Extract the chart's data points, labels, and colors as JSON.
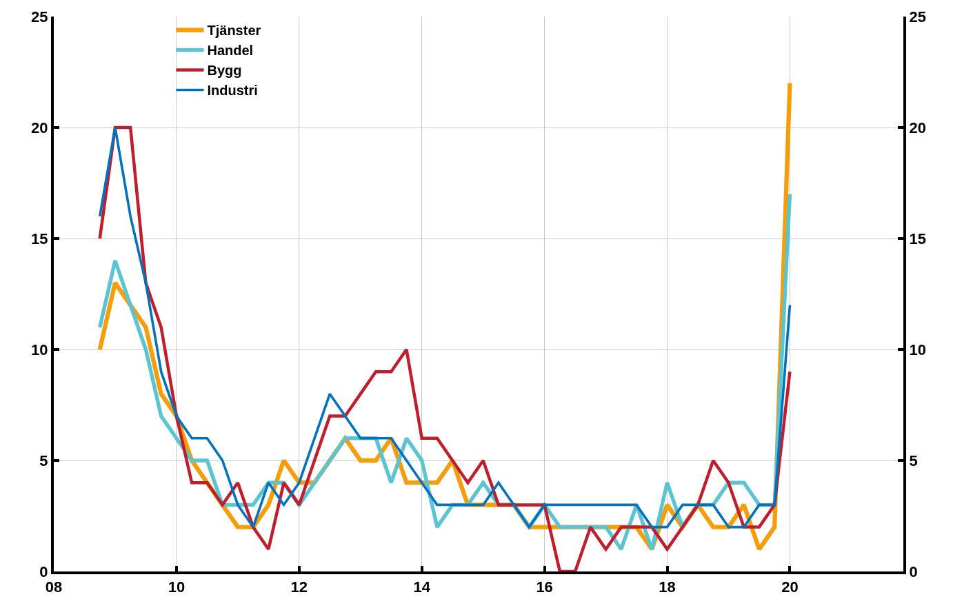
{
  "chart_data": {
    "type": "line",
    "x": [
      2008.75,
      2009.0,
      2009.25,
      2009.5,
      2009.75,
      2010.0,
      2010.25,
      2010.5,
      2010.75,
      2011.0,
      2011.25,
      2011.5,
      2011.75,
      2012.0,
      2012.25,
      2012.5,
      2012.75,
      2013.0,
      2013.25,
      2013.5,
      2013.75,
      2014.0,
      2014.25,
      2014.5,
      2014.75,
      2015.0,
      2015.25,
      2015.5,
      2015.75,
      2016.0,
      2016.25,
      2016.5,
      2016.75,
      2017.0,
      2017.25,
      2017.5,
      2017.75,
      2018.0,
      2018.25,
      2018.5,
      2018.75,
      2019.0,
      2019.25,
      2019.5,
      2019.75,
      2020.0
    ],
    "series": [
      {
        "name": "Tjänster",
        "color": "#f59e0b",
        "values": [
          10,
          13,
          12,
          11,
          8,
          7,
          5,
          4,
          3,
          2,
          2,
          3,
          5,
          4,
          4,
          5,
          6,
          5,
          5,
          6,
          4,
          4,
          4,
          5,
          3,
          3,
          3,
          3,
          2,
          2,
          2,
          2,
          2,
          2,
          2,
          2,
          1,
          3,
          2,
          3,
          2,
          2,
          3,
          1,
          2,
          22
        ]
      },
      {
        "name": "Handel",
        "color": "#5bc4d2",
        "values": [
          11,
          14,
          12,
          10,
          7,
          6,
          5,
          5,
          3,
          3,
          3,
          4,
          4,
          3,
          4,
          5,
          6,
          6,
          6,
          4,
          6,
          5,
          2,
          3,
          3,
          4,
          3,
          3,
          2,
          3,
          2,
          2,
          2,
          2,
          1,
          3,
          1,
          4,
          2,
          3,
          3,
          4,
          4,
          3,
          3,
          17
        ]
      },
      {
        "name": "Bygg",
        "color": "#be1e2d",
        "values": [
          15,
          20,
          20,
          13,
          11,
          7,
          4,
          4,
          3,
          4,
          2,
          1,
          4,
          3,
          5,
          7,
          7,
          8,
          9,
          9,
          10,
          6,
          6,
          5,
          4,
          5,
          3,
          3,
          3,
          3,
          0,
          0,
          2,
          1,
          2,
          2,
          2,
          1,
          2,
          3,
          5,
          4,
          2,
          2,
          3,
          9
        ]
      },
      {
        "name": "Industri",
        "color": "#0071bb",
        "values": [
          16,
          20,
          16,
          13,
          9,
          7,
          6,
          6,
          5,
          3,
          2,
          4,
          3,
          4,
          6,
          8,
          7,
          6,
          6,
          6,
          5,
          4,
          3,
          3,
          3,
          3,
          4,
          3,
          2,
          3,
          3,
          3,
          3,
          3,
          3,
          3,
          2,
          2,
          3,
          3,
          3,
          2,
          2,
          3,
          3,
          12
        ]
      }
    ],
    "xlim": [
      2008,
      2021.85
    ],
    "xticks": [
      {
        "value": 2008,
        "label": "08"
      },
      {
        "value": 2010,
        "label": "10"
      },
      {
        "value": 2012,
        "label": "12"
      },
      {
        "value": 2014,
        "label": "14"
      },
      {
        "value": 2016,
        "label": "16"
      },
      {
        "value": 2018,
        "label": "18"
      },
      {
        "value": 2020,
        "label": "20"
      }
    ],
    "ylim": [
      0,
      25
    ],
    "yticks": [
      0,
      5,
      10,
      15,
      20,
      25
    ],
    "y2lim": [
      0,
      25
    ],
    "y2ticks": [
      0,
      5,
      10,
      15,
      20,
      25
    ],
    "grid": true,
    "legend": "top left",
    "marker": "none",
    "line_style": "solid"
  }
}
